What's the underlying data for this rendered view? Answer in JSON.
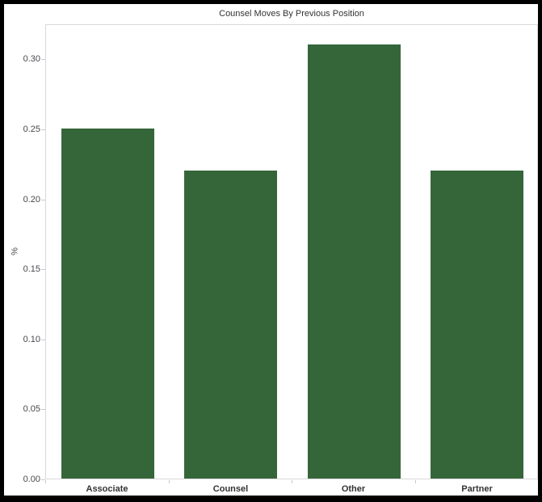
{
  "title": "Counsel Moves By Previous Position",
  "colors": {
    "bar": "#35663A",
    "frame": "#000000",
    "plot_border": "#d9d9d9",
    "tick": "#c9c9c9",
    "title_text": "#333333",
    "axis_text": "#47484f",
    "background": "#ffffff"
  },
  "chart_data": {
    "type": "bar",
    "title": "Counsel Moves By Previous Position",
    "categories": [
      "Associate",
      "Counsel",
      "Other",
      "Partner"
    ],
    "values": [
      0.25,
      0.22,
      0.31,
      0.22
    ],
    "xlabel": "",
    "ylabel": "%",
    "ylim": [
      0,
      0.325
    ],
    "yticks": [
      0.0,
      0.05,
      0.1,
      0.15,
      0.2,
      0.25,
      0.3
    ],
    "ytick_labels": [
      "0.00",
      "0.05",
      "0.10",
      "0.15",
      "0.20",
      "0.25",
      "0.30"
    ],
    "grid": false,
    "legend": false,
    "bar_color": "#35663A"
  }
}
